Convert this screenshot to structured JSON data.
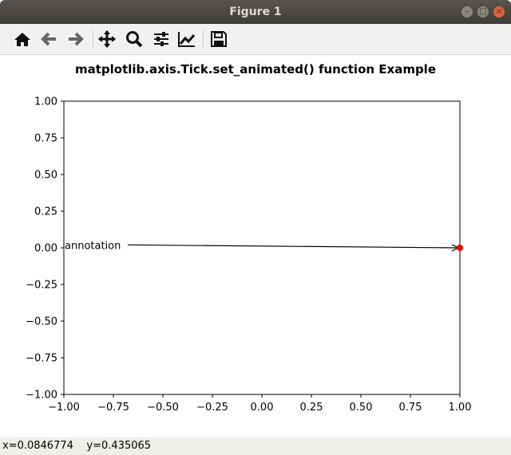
{
  "window": {
    "title": "Figure 1"
  },
  "toolbar": {
    "icons": [
      "home-icon",
      "back-icon",
      "forward-icon",
      "pan-icon",
      "zoom-icon",
      "configure-subplots-icon",
      "edit-axis-icon",
      "save-icon"
    ]
  },
  "status": {
    "text": "x=0.0846774    y=0.435065"
  },
  "chart_data": {
    "type": "scatter",
    "title": "matplotlib.axis.Tick.set_animated() function Example",
    "xlim": [
      -1,
      1
    ],
    "ylim": [
      -1,
      1
    ],
    "xticks": [
      "−1.00",
      "−0.75",
      "−0.50",
      "−0.25",
      "0.00",
      "0.25",
      "0.50",
      "0.75",
      "1.00"
    ],
    "yticks": [
      "−1.00",
      "−0.75",
      "−0.50",
      "−0.25",
      "0.00",
      "0.25",
      "0.50",
      "0.75",
      "1.00"
    ],
    "points": [
      {
        "x": 1,
        "y": 0,
        "color": "#ff0000"
      }
    ],
    "annotation": {
      "text": "annotation",
      "xy": [
        1,
        0
      ],
      "xytext": [
        -1,
        0.02
      ]
    },
    "grid": false
  }
}
